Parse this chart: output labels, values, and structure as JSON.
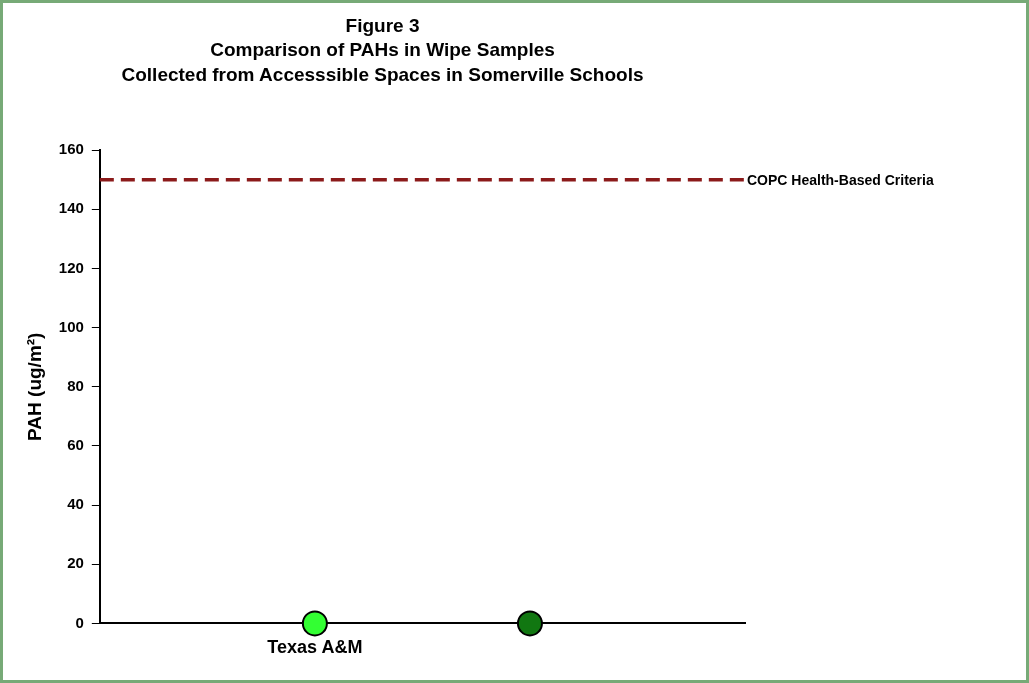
{
  "chart_data": {
    "type": "scatter",
    "title": "Figure 3",
    "subtitle": "Comparison of PAHs in Wipe Samples\nCollected from Accesssible Spaces in Somerville Schools",
    "ylabel": "PAH (ug/m²)",
    "categories": [
      null,
      "Texas A&M",
      null,
      null
    ],
    "series": [
      {
        "values": [
          null,
          0,
          0,
          null
        ],
        "colors": [
          "#33ff33",
          "#33ff33",
          "#117711",
          "#117711"
        ]
      }
    ],
    "ylim": [
      0,
      160
    ],
    "yticks": [
      0,
      20,
      40,
      60,
      80,
      100,
      120,
      140,
      160
    ],
    "grid": false,
    "legend": false,
    "marker": "circle",
    "ref_lines": [
      {
        "axis": "y",
        "value": 150,
        "label": "COPC Health-Based Criteria",
        "color": "#8b1a1a",
        "line_style": "dashed"
      }
    ]
  }
}
